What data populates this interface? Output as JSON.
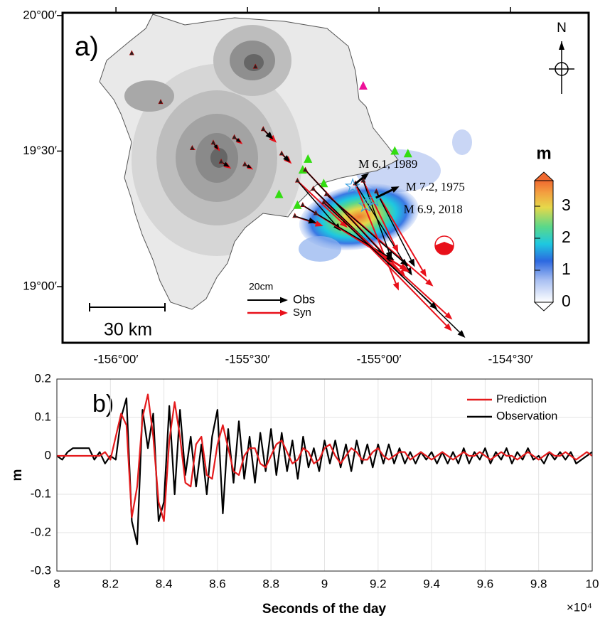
{
  "chart_data": [
    {
      "type": "map",
      "label": "a)",
      "xlim": [
        -156.203,
        -154.203
      ],
      "ylim": [
        18.793,
        20.01
      ],
      "xticks": [
        {
          "value": -156,
          "label": "-156°00′"
        },
        {
          "value": -155.5,
          "label": "-155°30′"
        },
        {
          "value": -155,
          "label": "-155°00′"
        },
        {
          "value": -154.5,
          "label": "-154°30′"
        }
      ],
      "yticks": [
        {
          "value": 19,
          "label": "19°00′"
        },
        {
          "value": 19.5,
          "label": "19°30′"
        },
        {
          "value": 20,
          "label": "20°00′"
        }
      ],
      "north": "N",
      "colorbar": {
        "title": "m",
        "clim": [
          0,
          3.8
        ],
        "ticks": [
          0,
          1,
          2,
          3
        ]
      },
      "scale_bar": "30 km",
      "vector_scale": "20cm",
      "legend": [
        {
          "name": "Obs",
          "color": "#000000"
        },
        {
          "name": "Syn",
          "color": "#e8101a"
        }
      ],
      "stations": [
        {
          "lon": -155.94,
          "lat": 19.86,
          "obs": [
            1,
            -1
          ],
          "syn": [
            1,
            -1
          ]
        },
        {
          "lon": -155.47,
          "lat": 19.81,
          "obs": [
            1,
            -1
          ],
          "syn": [
            1,
            -1
          ]
        },
        {
          "lon": -155.83,
          "lat": 19.68,
          "obs": [
            1,
            -1
          ],
          "syn": [
            1,
            -1
          ]
        },
        {
          "lon": -155.63,
          "lat": 19.53,
          "obs": [
            3,
            -4
          ],
          "syn": [
            4,
            -5
          ]
        },
        {
          "lon": -155.55,
          "lat": 19.55,
          "obs": [
            4,
            -3
          ],
          "syn": [
            5,
            -4
          ]
        },
        {
          "lon": -155.44,
          "lat": 19.58,
          "obs": [
            6,
            -6
          ],
          "syn": [
            8,
            -8
          ]
        },
        {
          "lon": -155.6,
          "lat": 19.46,
          "obs": [
            5,
            -3
          ],
          "syn": [
            6,
            -4
          ]
        },
        {
          "lon": -155.51,
          "lat": 19.45,
          "obs": [
            4,
            -2
          ],
          "syn": [
            5,
            -3
          ]
        },
        {
          "lon": -155.37,
          "lat": 19.49,
          "obs": [
            5,
            -5
          ],
          "syn": [
            6,
            -6
          ]
        },
        {
          "lon": -155.71,
          "lat": 19.51,
          "obs": [
            1,
            -1
          ],
          "syn": [
            2,
            -1
          ]
        },
        {
          "lon": -155.31,
          "lat": 19.39,
          "obs": [
            26,
            -30
          ],
          "syn": [
            30,
            -28
          ]
        },
        {
          "lon": -155.28,
          "lat": 19.43,
          "obs": [
            51,
            -55
          ],
          "syn": [
            60,
            -64
          ]
        },
        {
          "lon": -155.25,
          "lat": 19.36,
          "obs": [
            91,
            -89
          ],
          "syn": [
            83,
            -85
          ]
        },
        {
          "lon": -155.2,
          "lat": 19.34,
          "obs": [
            49,
            -43
          ],
          "syn": [
            64,
            -55
          ]
        },
        {
          "lon": -155.09,
          "lat": 19.38,
          "obs": [
            34,
            -55
          ],
          "syn": [
            26,
            -64
          ]
        },
        {
          "lon": -155.29,
          "lat": 19.3,
          "obs": [
            55,
            -34
          ],
          "syn": [
            64,
            -40
          ]
        },
        {
          "lon": -155.32,
          "lat": 19.26,
          "obs": [
            13,
            -4
          ],
          "syn": [
            17,
            -6
          ]
        },
        {
          "lon": -155.06,
          "lat": 19.39,
          "obs": [
            17,
            -47
          ],
          "syn": [
            21,
            -43
          ]
        },
        {
          "lon": -155.01,
          "lat": 19.35,
          "obs": [
            23,
            -45
          ],
          "syn": [
            30,
            -51
          ]
        },
        {
          "lon": -155.24,
          "lat": 19.27,
          "obs": [
            47,
            -28
          ],
          "syn": [
            55,
            -34
          ]
        },
        {
          "lon": -155.21,
          "lat": 19.31,
          "obs": [
            68,
            -64
          ],
          "syn": [
            77,
            -70
          ]
        }
      ],
      "green_sites": [
        [
          -154.94,
          19.5
        ],
        [
          -154.89,
          19.49
        ],
        [
          -155.27,
          19.47
        ],
        [
          -155.29,
          19.43
        ],
        [
          -155.21,
          19.38
        ],
        [
          -155.38,
          19.34
        ],
        [
          -155.31,
          19.3
        ]
      ],
      "green_color": "#33dd11",
      "magenta_site": [
        -155.06,
        19.74
      ],
      "magenta_color": "#ee1199",
      "events": [
        {
          "label": "M 6.1, 1989",
          "lon": -155.1,
          "lat": 19.37
        },
        {
          "label": "M 7.2, 1975",
          "lon": -155.02,
          "lat": 19.32
        },
        {
          "label": "M 6.9, 2018",
          "lon": -155.05,
          "lat": 19.3
        }
      ]
    },
    {
      "type": "line",
      "label": "b)",
      "xlabel": "Seconds of the day",
      "x_multiplier": "×10⁴",
      "ylabel": "m",
      "xlim": [
        8,
        10
      ],
      "ylim": [
        -0.3,
        0.2
      ],
      "xticks": [
        8,
        8.2,
        8.4,
        8.6,
        8.8,
        9,
        9.2,
        9.4,
        9.6,
        9.8,
        10
      ],
      "yticks": [
        -0.3,
        -0.2,
        -0.1,
        0,
        0.1,
        0.2
      ],
      "grid": true,
      "legend": "top-right",
      "x": [
        8,
        8.02,
        8.04,
        8.06,
        8.08,
        8.1,
        8.12,
        8.14,
        8.16,
        8.18,
        8.2,
        8.22,
        8.24,
        8.26,
        8.28,
        8.3,
        8.32,
        8.34,
        8.36,
        8.38,
        8.4,
        8.42,
        8.44,
        8.46,
        8.48,
        8.5,
        8.52,
        8.54,
        8.56,
        8.58,
        8.6,
        8.62,
        8.64,
        8.66,
        8.68,
        8.7,
        8.72,
        8.74,
        8.76,
        8.78,
        8.8,
        8.82,
        8.84,
        8.86,
        8.88,
        8.9,
        8.92,
        8.94,
        8.96,
        8.98,
        9,
        9.02,
        9.04,
        9.06,
        9.08,
        9.1,
        9.12,
        9.14,
        9.16,
        9.18,
        9.2,
        9.22,
        9.24,
        9.26,
        9.28,
        9.3,
        9.32,
        9.34,
        9.36,
        9.38,
        9.4,
        9.42,
        9.44,
        9.46,
        9.48,
        9.5,
        9.52,
        9.54,
        9.56,
        9.58,
        9.6,
        9.62,
        9.64,
        9.66,
        9.68,
        9.7,
        9.72,
        9.74,
        9.76,
        9.78,
        9.8,
        9.82,
        9.84,
        9.86,
        9.88,
        9.9,
        9.92,
        9.94,
        9.96,
        9.98,
        10
      ],
      "series": [
        {
          "name": "Prediction",
          "color": "#e41a1c",
          "values": [
            0,
            0,
            0,
            0,
            0,
            0,
            0,
            0,
            0,
            0.01,
            -0.01,
            0.05,
            0.11,
            0.08,
            -0.16,
            -0.08,
            0.1,
            0.16,
            0.05,
            -0.12,
            -0.17,
            0.04,
            0.14,
            0.05,
            -0.07,
            -0.08,
            0.03,
            0.05,
            -0.05,
            -0.06,
            0.03,
            0.08,
            0.02,
            -0.04,
            -0.05,
            0,
            0.02,
            0.02,
            -0.02,
            -0.03,
            0,
            0.03,
            0.04,
            0.01,
            -0.02,
            -0.01,
            0.02,
            0.01,
            -0.02,
            -0.01,
            0.02,
            0.03,
            0,
            -0.02,
            0,
            0.02,
            0.01,
            -0.01,
            -0.01,
            0.01,
            0.02,
            0,
            -0.01,
            0,
            0.01,
            0.01,
            -0.01,
            0,
            0.01,
            0,
            -0.01,
            0,
            0.01,
            0,
            -0.01,
            0,
            0.01,
            0,
            0,
            0.01,
            0,
            -0.01,
            0,
            0.01,
            0,
            0,
            -0.01,
            0,
            0.01,
            0,
            -0.01,
            0,
            0.01,
            0,
            0,
            0.01,
            0,
            -0.01,
            0,
            0.01,
            0
          ]
        },
        {
          "name": "Observation",
          "color": "#000000",
          "values": [
            0,
            -0.01,
            0.01,
            0.02,
            0.02,
            0.02,
            0.02,
            -0.01,
            0.01,
            -0.02,
            0,
            -0.01,
            0.1,
            0.15,
            -0.17,
            -0.23,
            0.12,
            0.02,
            0.11,
            -0.17,
            -0.12,
            0.13,
            -0.1,
            0.12,
            -0.05,
            0.05,
            -0.08,
            0.03,
            -0.1,
            0.05,
            0.12,
            -0.15,
            0.07,
            -0.07,
            0.09,
            -0.06,
            0.05,
            -0.07,
            0.06,
            -0.04,
            0.07,
            -0.05,
            0.06,
            -0.04,
            0.04,
            -0.06,
            0.05,
            -0.03,
            0.02,
            -0.04,
            0.04,
            -0.02,
            0.04,
            -0.03,
            0.03,
            -0.04,
            0.04,
            -0.02,
            0.03,
            -0.03,
            0.03,
            -0.02,
            0.03,
            -0.02,
            0.02,
            -0.02,
            0.01,
            -0.02,
            0.01,
            -0.01,
            0.01,
            -0.02,
            0.01,
            -0.02,
            0.01,
            -0.02,
            0.02,
            -0.02,
            0.01,
            -0.01,
            0.02,
            -0.02,
            0.01,
            -0.01,
            0.02,
            -0.02,
            0.01,
            -0.01,
            0.02,
            -0.01,
            0,
            -0.02,
            0.01,
            -0.01,
            0.01,
            -0.01,
            0.01,
            -0.02,
            -0.01,
            0,
            0.01
          ]
        }
      ]
    }
  ]
}
